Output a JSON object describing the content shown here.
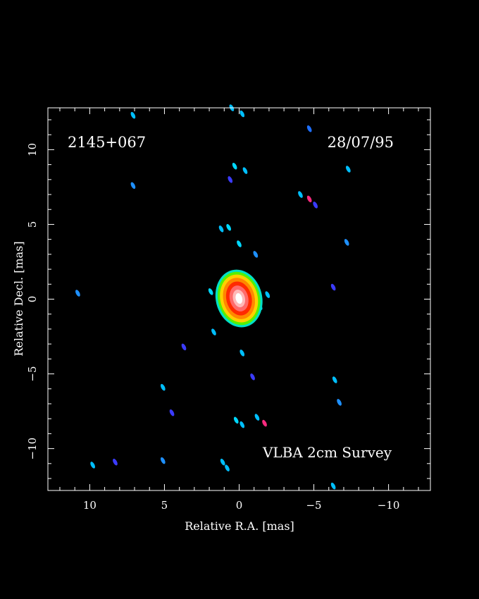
{
  "chart_data": {
    "type": "heatmap",
    "title": "",
    "source_name": "2145+067",
    "date": "28/07/95",
    "survey": "VLBA 2cm Survey",
    "xlabel": "Relative R.A. [mas]",
    "ylabel": "Relative Decl. [mas]",
    "xlim": [
      12.8,
      -12.8
    ],
    "ylim": [
      -12.8,
      12.8
    ],
    "x_ticks": [
      10,
      5,
      0,
      -5,
      -10
    ],
    "y_ticks": [
      10,
      5,
      0,
      -5,
      -10
    ],
    "x_tick_labels": [
      "10",
      "5",
      "0",
      "−5",
      "−10"
    ],
    "y_tick_labels": [
      "10",
      "5",
      "0",
      "−5",
      "−10"
    ],
    "core": {
      "x": 0.0,
      "y": 0.0,
      "levels": [
        {
          "rx": 1.55,
          "ry": 1.95,
          "color": "#00e0c8"
        },
        {
          "rx": 1.4,
          "ry": 1.8,
          "color": "#58f000"
        },
        {
          "rx": 1.25,
          "ry": 1.62,
          "color": "#ffd000"
        },
        {
          "rx": 1.05,
          "ry": 1.4,
          "color": "#ff8800"
        },
        {
          "rx": 0.85,
          "ry": 1.15,
          "color": "#ff2a00"
        },
        {
          "rx": 0.62,
          "ry": 0.88,
          "color": "#ff6a6a"
        },
        {
          "rx": 0.4,
          "ry": 0.6,
          "color": "#ffb8b8"
        },
        {
          "rx": 0.22,
          "ry": 0.36,
          "color": "#ffffff"
        }
      ]
    },
    "features": [
      {
        "x": 7.1,
        "y": 12.3,
        "color": "#00bfff"
      },
      {
        "x": 0.5,
        "y": 12.8,
        "color": "#00bfff"
      },
      {
        "x": -0.2,
        "y": 12.4,
        "color": "#00bfff"
      },
      {
        "x": -4.7,
        "y": 11.4,
        "color": "#1e6fff"
      },
      {
        "x": 0.3,
        "y": 8.9,
        "color": "#00d8ff"
      },
      {
        "x": -0.4,
        "y": 8.6,
        "color": "#00bfff"
      },
      {
        "x": 0.6,
        "y": 8.0,
        "color": "#3b3bff"
      },
      {
        "x": -7.3,
        "y": 8.7,
        "color": "#00bfff"
      },
      {
        "x": 7.1,
        "y": 7.6,
        "color": "#1e90ff"
      },
      {
        "x": -4.1,
        "y": 7.0,
        "color": "#00bfff"
      },
      {
        "x": -4.7,
        "y": 6.7,
        "color": "#ff2a7f"
      },
      {
        "x": -5.1,
        "y": 6.3,
        "color": "#3b3bff"
      },
      {
        "x": 0.7,
        "y": 4.8,
        "color": "#00d8ff"
      },
      {
        "x": 1.2,
        "y": 4.7,
        "color": "#00bfff"
      },
      {
        "x": 0.0,
        "y": 3.7,
        "color": "#00d8ff"
      },
      {
        "x": -1.1,
        "y": 3.0,
        "color": "#1e90ff"
      },
      {
        "x": -7.2,
        "y": 3.8,
        "color": "#1e90ff"
      },
      {
        "x": -6.3,
        "y": 0.8,
        "color": "#3b3bff"
      },
      {
        "x": 1.9,
        "y": 0.5,
        "color": "#00d8ff"
      },
      {
        "x": -1.9,
        "y": 0.3,
        "color": "#00bfff"
      },
      {
        "x": -1.4,
        "y": -0.5,
        "color": "#00d8ff"
      },
      {
        "x": 10.8,
        "y": 0.4,
        "color": "#1e90ff"
      },
      {
        "x": 1.7,
        "y": -2.2,
        "color": "#00bfff"
      },
      {
        "x": 3.7,
        "y": -3.2,
        "color": "#3b3bff"
      },
      {
        "x": -0.2,
        "y": -3.6,
        "color": "#00bfff"
      },
      {
        "x": -0.9,
        "y": -5.2,
        "color": "#3b3bff"
      },
      {
        "x": 5.1,
        "y": -5.9,
        "color": "#00bfff"
      },
      {
        "x": -6.4,
        "y": -5.4,
        "color": "#00bfff"
      },
      {
        "x": -6.7,
        "y": -6.9,
        "color": "#1e90ff"
      },
      {
        "x": 4.5,
        "y": -7.6,
        "color": "#3b3bff"
      },
      {
        "x": 0.2,
        "y": -8.1,
        "color": "#00d8ff"
      },
      {
        "x": -0.2,
        "y": -8.4,
        "color": "#00bfff"
      },
      {
        "x": -1.2,
        "y": -7.9,
        "color": "#00bfff"
      },
      {
        "x": -1.7,
        "y": -8.3,
        "color": "#ff2a7f"
      },
      {
        "x": 5.1,
        "y": -10.8,
        "color": "#1e90ff"
      },
      {
        "x": 8.3,
        "y": -10.9,
        "color": "#3b3bff"
      },
      {
        "x": 9.8,
        "y": -11.1,
        "color": "#00bfff"
      },
      {
        "x": 1.1,
        "y": -10.9,
        "color": "#00bfff"
      },
      {
        "x": 0.8,
        "y": -11.3,
        "color": "#00bfff"
      },
      {
        "x": -6.3,
        "y": -12.5,
        "color": "#00bfff"
      }
    ]
  }
}
